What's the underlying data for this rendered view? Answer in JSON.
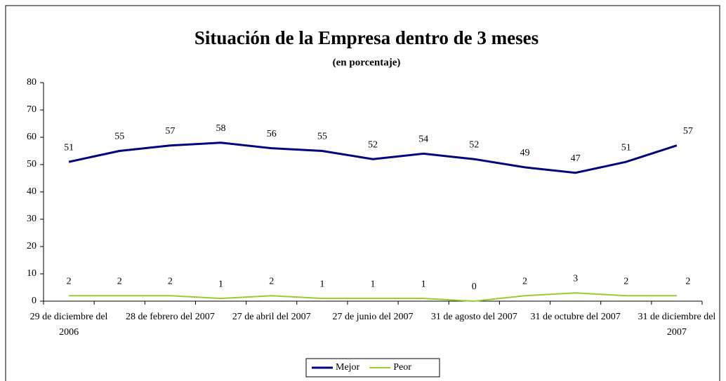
{
  "chart_data": {
    "type": "line",
    "title": "Situación de la Empresa dentro de 3 meses",
    "subtitle": "(en porcentaje)",
    "categories": [
      "29 de diciembre del 2006",
      null,
      "28 de febrero del 2007",
      null,
      "27 de abril del 2007",
      null,
      "27 de junio del 2007",
      null,
      "31 de agosto del 2007",
      null,
      "31 de octubre del 2007",
      null,
      "31 de diciembre del 2007"
    ],
    "series": [
      {
        "name": "Mejor",
        "color": "#000080",
        "values": [
          51,
          55,
          57,
          58,
          56,
          55,
          52,
          54,
          52,
          49,
          47,
          51,
          57
        ]
      },
      {
        "name": "Peor",
        "color": "#99cc33",
        "values": [
          2,
          2,
          2,
          1,
          2,
          1,
          1,
          1,
          0,
          2,
          3,
          2,
          2
        ]
      }
    ],
    "ylim": [
      0,
      80
    ],
    "yticks": [
      0,
      10,
      20,
      30,
      40,
      50,
      60,
      70,
      80
    ],
    "legend": "bottom"
  }
}
